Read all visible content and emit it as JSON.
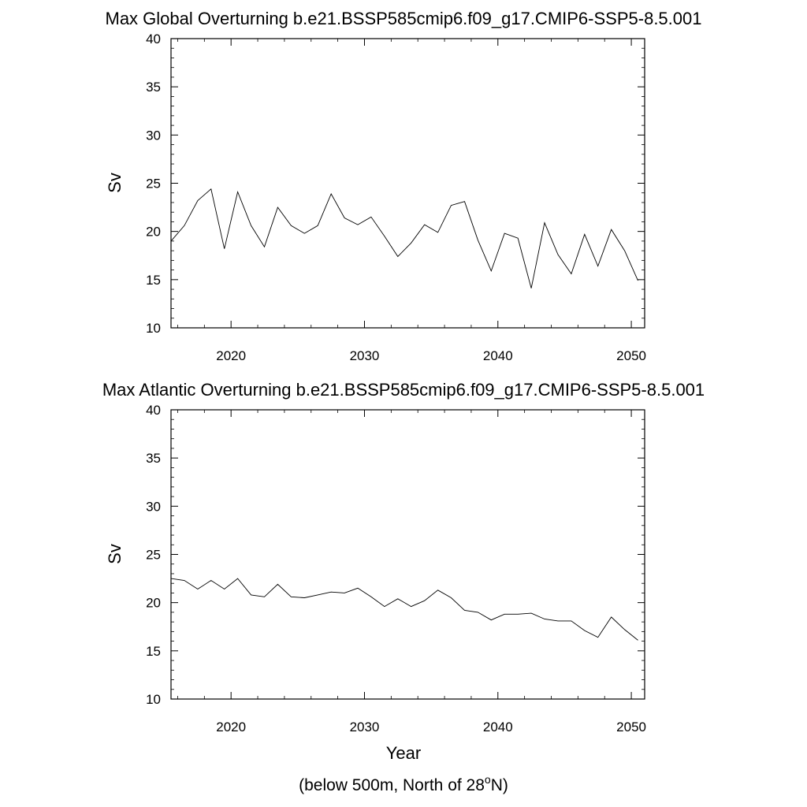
{
  "chart_data": [
    {
      "type": "line",
      "title": "Max Global Overturning b.e21.BSSP585cmip6.f09_g17.CMIP6-SSP5-8.5.001",
      "xlabel": "",
      "ylabel": "Sv",
      "xlim": [
        2015.5,
        2051
      ],
      "ylim": [
        10,
        40
      ],
      "xticks": [
        "2020",
        "2030",
        "2040",
        "2050"
      ],
      "yticks": [
        "10",
        "15",
        "20",
        "25",
        "30",
        "35",
        "40"
      ],
      "grid": false,
      "x": [
        2015.5,
        2016.5,
        2017.5,
        2018.5,
        2019.5,
        2020.5,
        2021.5,
        2022.5,
        2023.5,
        2024.5,
        2025.5,
        2026.5,
        2027.5,
        2028.5,
        2029.5,
        2030.5,
        2031.5,
        2032.5,
        2033.5,
        2034.5,
        2035.5,
        2036.5,
        2037.5,
        2038.5,
        2039.5,
        2040.5,
        2041.5,
        2042.5,
        2043.5,
        2044.5,
        2045.5,
        2046.5,
        2047.5,
        2048.5,
        2049.5,
        2050.5
      ],
      "values": [
        19.0,
        20.6,
        23.2,
        24.4,
        18.2,
        24.1,
        20.6,
        18.4,
        22.5,
        20.6,
        19.8,
        20.6,
        23.9,
        21.4,
        20.7,
        21.5,
        19.5,
        17.4,
        18.8,
        20.7,
        19.9,
        22.7,
        23.1,
        19.1,
        15.9,
        19.8,
        19.3,
        14.1,
        20.9,
        17.6,
        15.6,
        19.7,
        16.4,
        20.2,
        18.0,
        14.9
      ]
    },
    {
      "type": "line",
      "title": "Max Atlantic Overturning b.e21.BSSP585cmip6.f09_g17.CMIP6-SSP5-8.5.001",
      "xlabel": "Year",
      "ylabel": "Sv",
      "xlim": [
        2015.5,
        2051
      ],
      "ylim": [
        10,
        40
      ],
      "xticks": [
        "2020",
        "2030",
        "2040",
        "2050"
      ],
      "yticks": [
        "10",
        "15",
        "20",
        "25",
        "30",
        "35",
        "40"
      ],
      "grid": false,
      "x": [
        2015.5,
        2016.5,
        2017.5,
        2018.5,
        2019.5,
        2020.5,
        2021.5,
        2022.5,
        2023.5,
        2024.5,
        2025.5,
        2026.5,
        2027.5,
        2028.5,
        2029.5,
        2030.5,
        2031.5,
        2032.5,
        2033.5,
        2034.5,
        2035.5,
        2036.5,
        2037.5,
        2038.5,
        2039.5,
        2040.5,
        2041.5,
        2042.5,
        2043.5,
        2044.5,
        2045.5,
        2046.5,
        2047.5,
        2048.5,
        2049.5,
        2050.5
      ],
      "values": [
        22.5,
        22.3,
        21.4,
        22.3,
        21.4,
        22.5,
        20.8,
        20.6,
        21.9,
        20.6,
        20.5,
        20.8,
        21.1,
        21.0,
        21.5,
        20.6,
        19.6,
        20.4,
        19.6,
        20.2,
        21.3,
        20.5,
        19.2,
        19.0,
        18.2,
        18.8,
        18.8,
        18.9,
        18.3,
        18.1,
        18.1,
        17.1,
        16.4,
        18.5,
        17.2,
        16.1
      ]
    }
  ],
  "footnote": {
    "prefix": "(below 500m, North of 28",
    "superscript": "o",
    "suffix": "N)"
  }
}
